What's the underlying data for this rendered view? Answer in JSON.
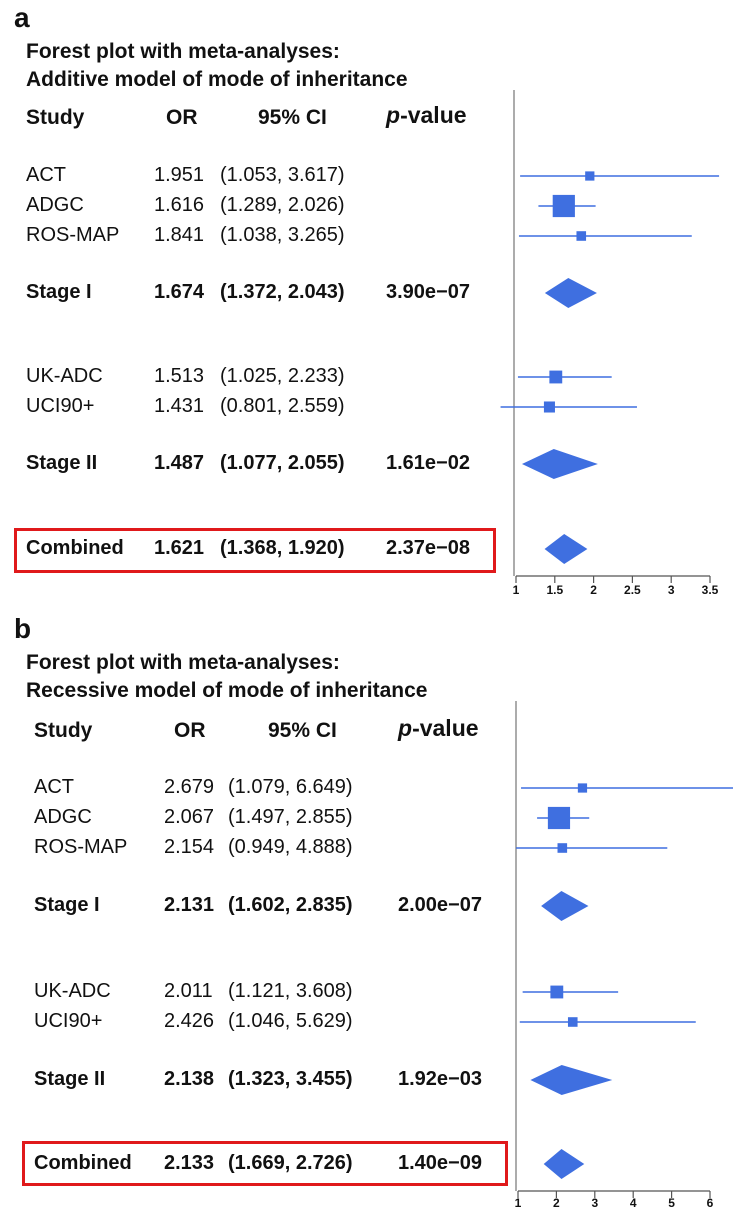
{
  "panels": [
    {
      "letter": "a",
      "title_line1": "Forest plot with meta-analyses:",
      "title_line2": "Additive model of mode of inheritance",
      "headers": {
        "study": "Study",
        "or": "OR",
        "ci": "95% CI",
        "p_italic": "p",
        "p_rest": "-value"
      },
      "rows": [
        {
          "study": "ACT",
          "or": "1.951",
          "ci": "(1.053, 3.617)",
          "p": "",
          "bold": false
        },
        {
          "study": "ADGC",
          "or": "1.616",
          "ci": "(1.289, 2.026)",
          "p": "",
          "bold": false
        },
        {
          "study": "ROS-MAP",
          "or": "1.841",
          "ci": "(1.038, 3.265)",
          "p": "",
          "bold": false
        },
        {
          "study": "Stage I",
          "or": "1.674",
          "ci": "(1.372, 2.043)",
          "p": "3.90e−07",
          "bold": true
        },
        {
          "study": "UK-ADC",
          "or": "1.513",
          "ci": "(1.025, 2.233)",
          "p": "",
          "bold": false
        },
        {
          "study": "UCI90+",
          "or": "1.431",
          "ci": "(0.801, 2.559)",
          "p": "",
          "bold": false
        },
        {
          "study": "Stage II",
          "or": "1.487",
          "ci": "(1.077, 2.055)",
          "p": "1.61e−02",
          "bold": true
        },
        {
          "study": "Combined",
          "or": "1.621",
          "ci": "(1.368, 1.920)",
          "p": "2.37e−08",
          "bold": true
        }
      ]
    },
    {
      "letter": "b",
      "title_line1": "Forest plot with meta-analyses:",
      "title_line2": "Recessive model of mode of inheritance",
      "headers": {
        "study": "Study",
        "or": "OR",
        "ci": "95% CI",
        "p_italic": "p",
        "p_rest": "-value"
      },
      "rows": [
        {
          "study": "ACT",
          "or": "2.679",
          "ci": "(1.079, 6.649)",
          "p": "",
          "bold": false
        },
        {
          "study": "ADGC",
          "or": "2.067",
          "ci": "(1.497, 2.855)",
          "p": "",
          "bold": false
        },
        {
          "study": "ROS-MAP",
          "or": "2.154",
          "ci": "(0.949, 4.888)",
          "p": "",
          "bold": false
        },
        {
          "study": "Stage I",
          "or": "2.131",
          "ci": "(1.602, 2.835)",
          "p": "2.00e−07",
          "bold": true
        },
        {
          "study": "UK-ADC",
          "or": "2.011",
          "ci": "(1.121, 3.608)",
          "p": "",
          "bold": false
        },
        {
          "study": "UCI90+",
          "or": "2.426",
          "ci": "(1.046, 5.629)",
          "p": "",
          "bold": false
        },
        {
          "study": "Stage II",
          "or": "2.138",
          "ci": "(1.323, 3.455)",
          "p": "1.92e−03",
          "bold": true
        },
        {
          "study": "Combined",
          "or": "2.133",
          "ci": "(1.669, 2.726)",
          "p": "1.40e−09",
          "bold": true
        }
      ]
    }
  ],
  "chart_data": [
    {
      "type": "forest",
      "xlim": [
        1,
        3.6
      ],
      "ticks": [
        1,
        1.5,
        2,
        2.5,
        3,
        3.5
      ],
      "tick_labels": [
        "1",
        "1.5",
        "2",
        "2.5",
        "3",
        "3.5"
      ],
      "studies": [
        {
          "name": "ACT",
          "or": 1.951,
          "lo": 1.053,
          "hi": 3.617,
          "weight": 0.18
        },
        {
          "name": "ADGC",
          "or": 1.616,
          "lo": 1.289,
          "hi": 2.026,
          "weight": 0.9
        },
        {
          "name": "ROS-MAP",
          "or": 1.841,
          "lo": 1.038,
          "hi": 3.265,
          "weight": 0.2
        },
        {
          "name": "UK-ADC",
          "or": 1.513,
          "lo": 1.025,
          "hi": 2.233,
          "weight": 0.38
        },
        {
          "name": "UCI90+",
          "or": 1.431,
          "lo": 0.801,
          "hi": 2.559,
          "weight": 0.28
        }
      ],
      "summaries": [
        {
          "name": "Stage I",
          "or": 1.674,
          "lo": 1.372,
          "hi": 2.043
        },
        {
          "name": "Stage II",
          "or": 1.487,
          "lo": 1.077,
          "hi": 2.055
        },
        {
          "name": "Combined",
          "or": 1.621,
          "lo": 1.368,
          "hi": 1.92
        }
      ],
      "color": "#3f6fe0"
    },
    {
      "type": "forest",
      "xlim": [
        1,
        6.3
      ],
      "ticks": [
        1,
        2,
        3,
        4,
        5,
        6
      ],
      "tick_labels": [
        "1",
        "2",
        "3",
        "4",
        "5",
        "6"
      ],
      "studies": [
        {
          "name": "ACT",
          "or": 2.679,
          "lo": 1.079,
          "hi": 6.649,
          "weight": 0.18
        },
        {
          "name": "ADGC",
          "or": 2.067,
          "lo": 1.497,
          "hi": 2.855,
          "weight": 0.9
        },
        {
          "name": "ROS-MAP",
          "or": 2.154,
          "lo": 0.949,
          "hi": 4.888,
          "weight": 0.2
        },
        {
          "name": "UK-ADC",
          "or": 2.011,
          "lo": 1.121,
          "hi": 3.608,
          "weight": 0.38
        },
        {
          "name": "UCI90+",
          "or": 2.426,
          "lo": 1.046,
          "hi": 5.629,
          "weight": 0.2
        }
      ],
      "summaries": [
        {
          "name": "Stage I",
          "or": 2.131,
          "lo": 1.602,
          "hi": 2.835
        },
        {
          "name": "Stage II",
          "or": 2.138,
          "lo": 1.323,
          "hi": 3.455
        },
        {
          "name": "Combined",
          "or": 2.133,
          "lo": 1.669,
          "hi": 2.726
        }
      ],
      "color": "#3f6fe0"
    }
  ]
}
